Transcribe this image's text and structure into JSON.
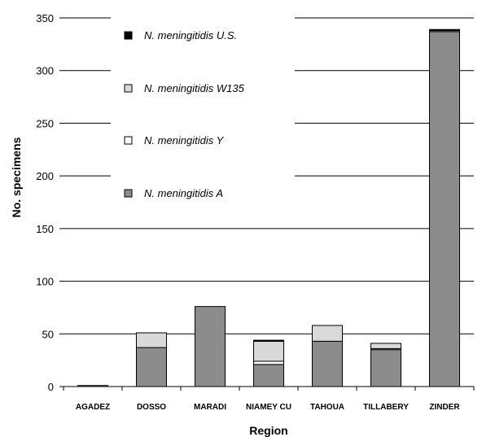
{
  "chart_data": {
    "type": "bar",
    "stacked": true,
    "title": "",
    "xlabel": "Region",
    "ylabel": "No. specimens",
    "ylim": [
      0,
      350
    ],
    "yticks": [
      0,
      50,
      100,
      150,
      200,
      250,
      300,
      350
    ],
    "grid": true,
    "legend_position": "top-left inside plot",
    "categories": [
      "AGADEZ",
      "DOSSO",
      "MARADI",
      "NIAMEY CU",
      "TAHOUA",
      "TILLABERY",
      "ZINDER"
    ],
    "series": [
      {
        "name": "N. meningitidis A",
        "color": "#8c8c8c",
        "values": [
          1,
          37,
          76,
          21,
          43,
          35,
          337
        ]
      },
      {
        "name": "N. meningitidis Y",
        "color": "#ffffff",
        "values": [
          0,
          0,
          0,
          3,
          0,
          1,
          0
        ]
      },
      {
        "name": "N. meningitidis W135",
        "color": "#d9d9d9",
        "values": [
          0,
          14,
          0,
          19,
          15,
          5,
          1
        ]
      },
      {
        "name": "N. meningitidis U.S.",
        "color": "#000000",
        "values": [
          0,
          0,
          0,
          1,
          0,
          0,
          1
        ]
      }
    ],
    "legend_order": [
      "N. meningitidis U.S.",
      "N. meningitidis W135",
      "N. meningitidis Y",
      "N. meningitidis A"
    ]
  }
}
